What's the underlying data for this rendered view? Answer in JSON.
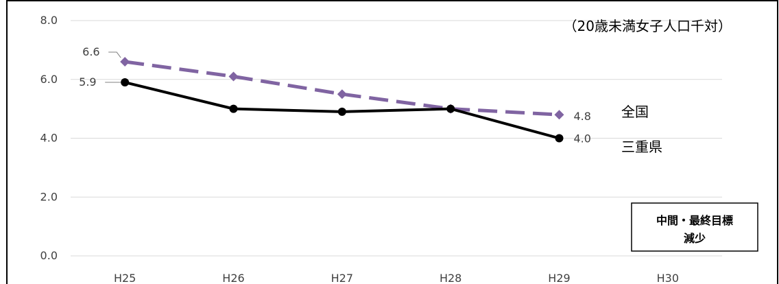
{
  "chart_data": {
    "type": "line",
    "categories": [
      "H25",
      "H26",
      "H27",
      "H28",
      "H29",
      "H30"
    ],
    "ylim": [
      0,
      8
    ],
    "yticks": [
      "0.0",
      "2.0",
      "4.0",
      "6.0",
      "8.0"
    ],
    "grid": true,
    "unit_note": "（20歳未満女子人口千対）",
    "series": [
      {
        "name": "全国",
        "values": [
          6.6,
          6.1,
          5.5,
          5.0,
          4.8,
          null
        ],
        "color": "#8064A2",
        "style": "dashed",
        "marker": "diamond",
        "labels": {
          "first": "6.6",
          "last": "4.8"
        }
      },
      {
        "name": "三重県",
        "values": [
          5.9,
          5.0,
          4.9,
          5.0,
          4.0,
          null
        ],
        "color": "#000000",
        "style": "solid",
        "marker": "circle",
        "labels": {
          "first": "5.9",
          "last": "4.0"
        }
      }
    ],
    "goal_box": {
      "line1": "中間・最終目標",
      "line2": "減少"
    }
  }
}
